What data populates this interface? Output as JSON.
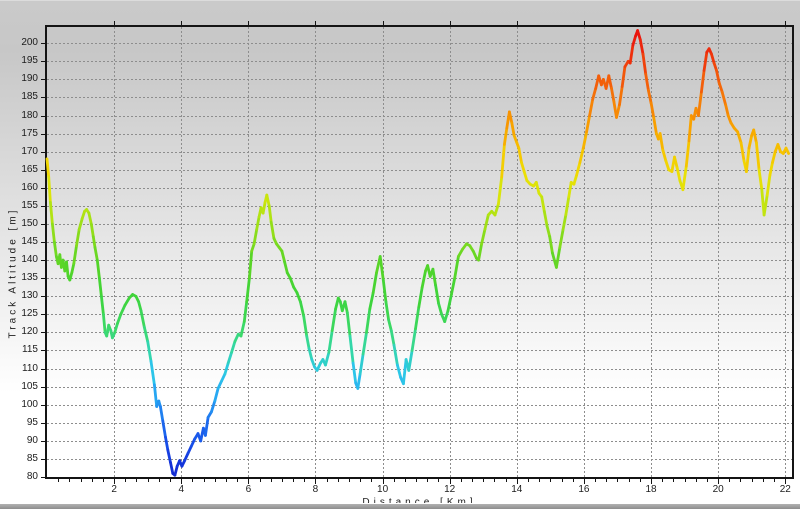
{
  "window": {
    "bg_top": "#c8c8c8",
    "bg_bottom": "#ffffff",
    "frame_color": "#141414",
    "grid_color": "#8d8d8d"
  },
  "chart_data": {
    "type": "line",
    "title": "",
    "xlabel": "Distance [Km]",
    "ylabel": "Track Altitude [m]",
    "xlim": [
      0,
      22.2
    ],
    "ylim": [
      80,
      204.5
    ],
    "x_major_tick_step": 2,
    "x_minor_tick_step": 0.3333,
    "y_tick_step": 5,
    "x_tick_labels": [
      2,
      4,
      6,
      8,
      10,
      12,
      14,
      16,
      18,
      20,
      22
    ],
    "y_tick_labels": [
      80,
      85,
      90,
      95,
      100,
      105,
      110,
      115,
      120,
      125,
      130,
      135,
      140,
      145,
      150,
      155,
      160,
      165,
      170,
      175,
      180,
      185,
      190,
      195,
      200
    ],
    "grid": "dashed",
    "legend": "none",
    "line_width": 2.8,
    "colormap": [
      [
        80,
        "#1226cf"
      ],
      [
        88,
        "#1747e6"
      ],
      [
        96,
        "#1e74f0"
      ],
      [
        103,
        "#27aaf2"
      ],
      [
        109,
        "#2cc6e9"
      ],
      [
        115,
        "#33d7ac"
      ],
      [
        121,
        "#3bd969"
      ],
      [
        129,
        "#3ed43c"
      ],
      [
        137,
        "#4fd42a"
      ],
      [
        145,
        "#7eda1e"
      ],
      [
        152,
        "#abe214"
      ],
      [
        158,
        "#d3e60c"
      ],
      [
        164,
        "#eede04"
      ],
      [
        170,
        "#f6c300"
      ],
      [
        177,
        "#f8a000"
      ],
      [
        184,
        "#f57b08"
      ],
      [
        191,
        "#f2560a"
      ],
      [
        197,
        "#ee2f0c"
      ],
      [
        204,
        "#e80d0d"
      ]
    ],
    "points": [
      [
        0.0,
        168
      ],
      [
        0.05,
        163
      ],
      [
        0.1,
        156
      ],
      [
        0.16,
        150
      ],
      [
        0.22,
        145
      ],
      [
        0.28,
        141
      ],
      [
        0.33,
        139
      ],
      [
        0.38,
        141.5
      ],
      [
        0.43,
        138
      ],
      [
        0.48,
        140
      ],
      [
        0.53,
        137
      ],
      [
        0.58,
        139.5
      ],
      [
        0.63,
        135.5
      ],
      [
        0.68,
        134.5
      ],
      [
        0.74,
        136.5
      ],
      [
        0.8,
        139
      ],
      [
        0.88,
        144
      ],
      [
        0.96,
        148.5
      ],
      [
        1.05,
        151.5
      ],
      [
        1.12,
        153.5
      ],
      [
        1.18,
        154
      ],
      [
        1.25,
        153
      ],
      [
        1.32,
        150
      ],
      [
        1.38,
        146.5
      ],
      [
        1.43,
        143.5
      ],
      [
        1.5,
        140
      ],
      [
        1.56,
        135
      ],
      [
        1.62,
        130
      ],
      [
        1.68,
        125
      ],
      [
        1.73,
        120
      ],
      [
        1.78,
        119
      ],
      [
        1.84,
        122
      ],
      [
        1.9,
        120.5
      ],
      [
        1.95,
        118.5
      ],
      [
        2.02,
        120
      ],
      [
        2.1,
        122.5
      ],
      [
        2.2,
        125
      ],
      [
        2.32,
        127.5
      ],
      [
        2.45,
        129.5
      ],
      [
        2.55,
        130.5
      ],
      [
        2.65,
        130
      ],
      [
        2.73,
        128.5
      ],
      [
        2.8,
        126
      ],
      [
        2.9,
        121.5
      ],
      [
        3.0,
        117.5
      ],
      [
        3.1,
        112
      ],
      [
        3.2,
        105.5
      ],
      [
        3.27,
        99.5
      ],
      [
        3.33,
        101
      ],
      [
        3.38,
        99.5
      ],
      [
        3.45,
        95.5
      ],
      [
        3.53,
        91
      ],
      [
        3.6,
        87.5
      ],
      [
        3.68,
        84
      ],
      [
        3.75,
        81
      ],
      [
        3.81,
        80.5
      ],
      [
        3.88,
        83
      ],
      [
        3.95,
        84.5
      ],
      [
        4.02,
        83
      ],
      [
        4.1,
        84.5
      ],
      [
        4.2,
        86.5
      ],
      [
        4.3,
        88.5
      ],
      [
        4.4,
        90.5
      ],
      [
        4.5,
        92
      ],
      [
        4.58,
        90
      ],
      [
        4.66,
        93.5
      ],
      [
        4.72,
        91.5
      ],
      [
        4.8,
        96.5
      ],
      [
        4.9,
        98
      ],
      [
        5.0,
        101
      ],
      [
        5.1,
        104.5
      ],
      [
        5.2,
        106.5
      ],
      [
        5.3,
        108.5
      ],
      [
        5.4,
        111.5
      ],
      [
        5.5,
        114.5
      ],
      [
        5.6,
        117.5
      ],
      [
        5.7,
        119.5
      ],
      [
        5.78,
        119
      ],
      [
        5.88,
        123
      ],
      [
        5.95,
        128.5
      ],
      [
        6.03,
        135
      ],
      [
        6.1,
        142.5
      ],
      [
        6.17,
        144.5
      ],
      [
        6.25,
        148.5
      ],
      [
        6.32,
        152
      ],
      [
        6.38,
        154.5
      ],
      [
        6.44,
        153
      ],
      [
        6.5,
        156
      ],
      [
        6.55,
        158
      ],
      [
        6.62,
        155
      ],
      [
        6.68,
        150.5
      ],
      [
        6.76,
        146
      ],
      [
        6.84,
        144.5
      ],
      [
        6.92,
        143.5
      ],
      [
        7.0,
        142.5
      ],
      [
        7.08,
        139.5
      ],
      [
        7.16,
        136.5
      ],
      [
        7.25,
        135
      ],
      [
        7.35,
        132.5
      ],
      [
        7.45,
        131
      ],
      [
        7.55,
        128.5
      ],
      [
        7.65,
        124.5
      ],
      [
        7.74,
        119
      ],
      [
        7.81,
        115.5
      ],
      [
        7.89,
        112.5
      ],
      [
        7.97,
        110.5
      ],
      [
        8.05,
        109.5
      ],
      [
        8.15,
        111.5
      ],
      [
        8.22,
        112.5
      ],
      [
        8.3,
        111
      ],
      [
        8.4,
        114.5
      ],
      [
        8.5,
        120.5
      ],
      [
        8.6,
        126.5
      ],
      [
        8.68,
        129.5
      ],
      [
        8.74,
        128.5
      ],
      [
        8.8,
        126
      ],
      [
        8.88,
        128.5
      ],
      [
        8.95,
        125.5
      ],
      [
        9.03,
        119
      ],
      [
        9.12,
        111.5
      ],
      [
        9.2,
        106
      ],
      [
        9.26,
        104.5
      ],
      [
        9.33,
        108.5
      ],
      [
        9.42,
        114
      ],
      [
        9.52,
        120
      ],
      [
        9.62,
        126.5
      ],
      [
        9.72,
        131
      ],
      [
        9.82,
        136.5
      ],
      [
        9.93,
        141
      ],
      [
        10.02,
        134.5
      ],
      [
        10.1,
        128.5
      ],
      [
        10.18,
        123.5
      ],
      [
        10.26,
        120.5
      ],
      [
        10.34,
        116.5
      ],
      [
        10.44,
        111
      ],
      [
        10.54,
        107.5
      ],
      [
        10.62,
        105.8
      ],
      [
        10.7,
        112.5
      ],
      [
        10.78,
        109.5
      ],
      [
        10.88,
        115
      ],
      [
        10.98,
        121
      ],
      [
        11.08,
        127
      ],
      [
        11.18,
        132.5
      ],
      [
        11.28,
        137
      ],
      [
        11.34,
        138.5
      ],
      [
        11.42,
        135.5
      ],
      [
        11.5,
        137.5
      ],
      [
        11.58,
        133
      ],
      [
        11.67,
        128
      ],
      [
        11.76,
        125
      ],
      [
        11.85,
        123
      ],
      [
        11.95,
        126
      ],
      [
        12.05,
        130.5
      ],
      [
        12.15,
        135
      ],
      [
        12.26,
        141
      ],
      [
        12.38,
        143
      ],
      [
        12.5,
        144.5
      ],
      [
        12.6,
        144
      ],
      [
        12.7,
        142.5
      ],
      [
        12.8,
        140.5
      ],
      [
        12.86,
        140
      ],
      [
        12.95,
        144.5
      ],
      [
        13.05,
        148.5
      ],
      [
        13.15,
        152.5
      ],
      [
        13.25,
        153.5
      ],
      [
        13.35,
        152.5
      ],
      [
        13.45,
        155.5
      ],
      [
        13.55,
        163
      ],
      [
        13.63,
        172
      ],
      [
        13.7,
        176.5
      ],
      [
        13.78,
        181
      ],
      [
        13.85,
        178
      ],
      [
        13.92,
        174.5
      ],
      [
        14.0,
        172.5
      ],
      [
        14.06,
        171
      ],
      [
        14.14,
        167
      ],
      [
        14.22,
        164.5
      ],
      [
        14.3,
        162
      ],
      [
        14.4,
        161
      ],
      [
        14.5,
        160.5
      ],
      [
        14.58,
        161.5
      ],
      [
        14.66,
        158.5
      ],
      [
        14.74,
        157.5
      ],
      [
        14.82,
        153.5
      ],
      [
        14.9,
        149.5
      ],
      [
        14.98,
        146.5
      ],
      [
        15.06,
        142
      ],
      [
        15.18,
        138
      ],
      [
        15.28,
        143.5
      ],
      [
        15.38,
        148.5
      ],
      [
        15.46,
        152.5
      ],
      [
        15.55,
        157.5
      ],
      [
        15.62,
        161.5
      ],
      [
        15.7,
        161
      ],
      [
        15.78,
        163.5
      ],
      [
        15.88,
        167
      ],
      [
        15.98,
        171
      ],
      [
        16.08,
        175.5
      ],
      [
        16.17,
        180
      ],
      [
        16.26,
        184.5
      ],
      [
        16.35,
        187.5
      ],
      [
        16.44,
        191
      ],
      [
        16.52,
        188.5
      ],
      [
        16.58,
        190
      ],
      [
        16.66,
        187.5
      ],
      [
        16.74,
        191
      ],
      [
        16.82,
        187.5
      ],
      [
        16.89,
        184
      ],
      [
        16.97,
        179.5
      ],
      [
        17.06,
        183
      ],
      [
        17.14,
        188
      ],
      [
        17.22,
        193.5
      ],
      [
        17.32,
        195
      ],
      [
        17.38,
        194.5
      ],
      [
        17.46,
        199.5
      ],
      [
        17.54,
        202
      ],
      [
        17.6,
        203.5
      ],
      [
        17.68,
        201
      ],
      [
        17.76,
        197
      ],
      [
        17.84,
        191.5
      ],
      [
        17.92,
        187
      ],
      [
        18.0,
        183.5
      ],
      [
        18.08,
        179.5
      ],
      [
        18.16,
        175
      ],
      [
        18.22,
        173.5
      ],
      [
        18.27,
        175
      ],
      [
        18.35,
        170.5
      ],
      [
        18.44,
        167.5
      ],
      [
        18.53,
        165
      ],
      [
        18.62,
        164.5
      ],
      [
        18.7,
        168.5
      ],
      [
        18.78,
        165.5
      ],
      [
        18.86,
        162
      ],
      [
        18.95,
        159.5
      ],
      [
        19.05,
        166
      ],
      [
        19.13,
        173
      ],
      [
        19.2,
        180
      ],
      [
        19.27,
        179
      ],
      [
        19.34,
        182
      ],
      [
        19.41,
        180
      ],
      [
        19.5,
        186.5
      ],
      [
        19.58,
        192.5
      ],
      [
        19.66,
        197.5
      ],
      [
        19.73,
        198.5
      ],
      [
        19.8,
        197
      ],
      [
        19.88,
        194.5
      ],
      [
        19.95,
        192.5
      ],
      [
        20.03,
        189
      ],
      [
        20.12,
        186.5
      ],
      [
        20.22,
        183
      ],
      [
        20.3,
        180
      ],
      [
        20.38,
        178
      ],
      [
        20.48,
        176.5
      ],
      [
        20.58,
        175.5
      ],
      [
        20.68,
        172.5
      ],
      [
        20.77,
        167.5
      ],
      [
        20.84,
        164.5
      ],
      [
        20.92,
        171
      ],
      [
        21.0,
        174.5
      ],
      [
        21.06,
        176
      ],
      [
        21.14,
        172.5
      ],
      [
        21.22,
        165
      ],
      [
        21.3,
        159.5
      ],
      [
        21.37,
        152.5
      ],
      [
        21.46,
        158
      ],
      [
        21.54,
        163.5
      ],
      [
        21.62,
        167
      ],
      [
        21.7,
        170
      ],
      [
        21.78,
        172
      ],
      [
        21.86,
        170
      ],
      [
        21.94,
        169.5
      ],
      [
        22.02,
        171
      ],
      [
        22.1,
        169.5
      ]
    ]
  }
}
